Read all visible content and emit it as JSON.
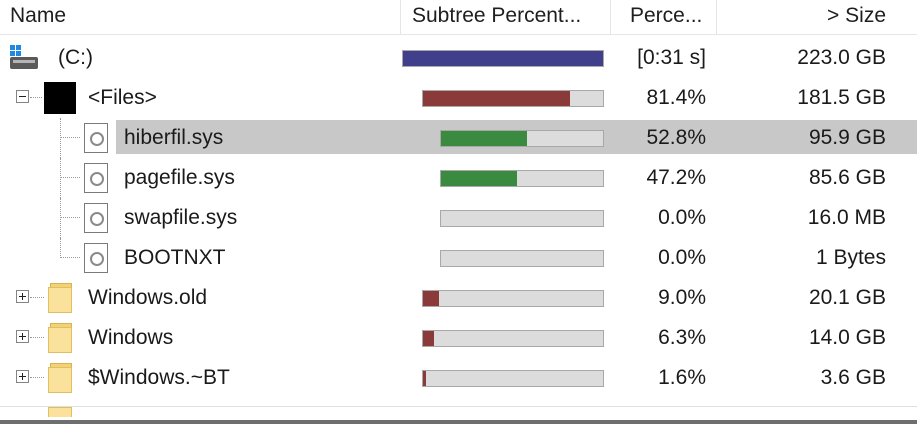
{
  "header": {
    "name": "Name",
    "subtree": "Subtree Percent...",
    "percent": "Perce...",
    "size": "> Size"
  },
  "colors": {
    "drive_bar": "#3f3f8c",
    "files_bar": "#8b3a3a",
    "file_bar": "#3a8a3f",
    "folder_bar": "#8b3a3a",
    "bar_bg": "#dcdcdc",
    "selection": "#c8c8c8"
  },
  "rows": [
    {
      "name": "(C:)",
      "icon": "drive-icon",
      "percent": "[0:31 s]",
      "size": "223.0 GB",
      "fill_fraction": 1.0
    },
    {
      "name": "<Files>",
      "icon": "files-icon",
      "percent": "81.4%",
      "size": "181.5 GB",
      "fill_fraction": 0.814
    },
    {
      "name": "hiberfil.sys",
      "icon": "file-icon",
      "percent": "52.8%",
      "size": "95.9 GB",
      "fill_fraction": 0.528,
      "selected": true
    },
    {
      "name": "pagefile.sys",
      "icon": "file-icon",
      "percent": "47.2%",
      "size": "85.6 GB",
      "fill_fraction": 0.472
    },
    {
      "name": "swapfile.sys",
      "icon": "file-icon",
      "percent": "0.0%",
      "size": "16.0 MB",
      "fill_fraction": 0.0
    },
    {
      "name": "BOOTNXT",
      "icon": "file-icon",
      "percent": "0.0%",
      "size": "1 Bytes",
      "fill_fraction": 0.0
    },
    {
      "name": "Windows.old",
      "icon": "folder-icon",
      "percent": "9.0%",
      "size": "20.1 GB",
      "fill_fraction": 0.09
    },
    {
      "name": "Windows",
      "icon": "folder-icon",
      "percent": "6.3%",
      "size": "14.0 GB",
      "fill_fraction": 0.063
    },
    {
      "name": "$Windows.~BT",
      "icon": "folder-icon",
      "percent": "1.6%",
      "size": "3.6 GB",
      "fill_fraction": 0.016
    }
  ]
}
